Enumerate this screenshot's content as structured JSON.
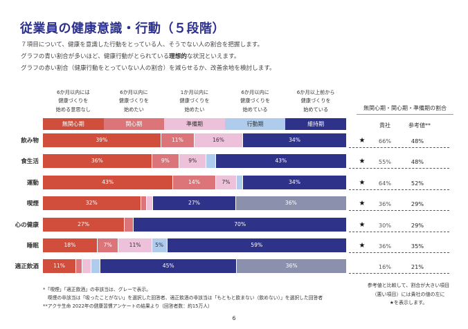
{
  "page": {
    "title": "従業員の健康意識・行動（５段階）",
    "intro": {
      "line1": "７項目について、健康を意識した行動をとっている人、そうでない人の割合を把握します。",
      "line2_pre": "グラフの青い割合が多いほど、健康行動がとられている",
      "line2_bold": "理想的",
      "line2_post": "な状況といえます。",
      "line3": "グラフの赤い割合（健康行動をとっていない人の割合）を減らせるか、改善余地を検討します。"
    },
    "page_number": "6"
  },
  "stage_descriptions": [
    [
      "6か月以内には",
      "健康づくりを",
      "始める意思なし"
    ],
    [
      "6か月以内に",
      "健康づくりを",
      "始めたい"
    ],
    [
      "1か月以内に",
      "健康づくりを",
      "始めたい"
    ],
    [
      "6か月以内に",
      "健康づくりを",
      "始めている"
    ],
    [
      "6か月以上前から",
      "健康づくりを",
      "始めている"
    ]
  ],
  "legend": [
    {
      "label": "無関心期",
      "color": "#d24e3c",
      "text_color": "#ffffff"
    },
    {
      "label": "関心期",
      "color": "#dc7579",
      "text_color": "#ffffff"
    },
    {
      "label": "準備期",
      "color": "#edc1d9",
      "text_color": "#333333"
    },
    {
      "label": "行動期",
      "color": "#b0ccec",
      "text_color": "#333333"
    },
    {
      "label": "維持期",
      "color": "#2e3289",
      "text_color": "#ffffff"
    }
  ],
  "chart_data": {
    "type": "bar",
    "orientation": "horizontal",
    "stacked": true,
    "unit": "%",
    "categories": [
      "飲み物",
      "食生活",
      "運動",
      "喫煙",
      "心の健康",
      "睡眠",
      "適正飲酒"
    ],
    "series": [
      {
        "name": "無関心期",
        "color": "#d24e3c",
        "label_color": "#ffffff",
        "values": [
          39,
          36,
          43,
          32,
          27,
          18,
          11
        ]
      },
      {
        "name": "関心期",
        "color": "#dc7579",
        "label_color": "#ffffff",
        "values": [
          11,
          9,
          14,
          2,
          3,
          7,
          2
        ]
      },
      {
        "name": "準備期",
        "color": "#edc1d9",
        "label_color": "#333333",
        "values": [
          16,
          9,
          7,
          2,
          0,
          11,
          3
        ]
      },
      {
        "name": "行動期",
        "color": "#b0ccec",
        "label_color": "#333333",
        "values": [
          0,
          3,
          2,
          0,
          0,
          5,
          3
        ]
      },
      {
        "name": "維持期",
        "color": "#2e3289",
        "label_color": "#ffffff",
        "values": [
          34,
          43,
          34,
          27,
          70,
          59,
          45
        ]
      },
      {
        "name": "非該当",
        "color": "#8b90ad",
        "label_color": "#ffffff",
        "values": [
          0,
          0,
          0,
          36,
          0,
          0,
          36
        ]
      }
    ],
    "xlim": [
      0,
      100
    ],
    "data_labels_shown_for_values_at_least": 5
  },
  "right_table": {
    "header": "無関心期・関心期・準備期の割合",
    "col_own": "貴社",
    "col_ref": "参考値**",
    "star_symbol": "★",
    "rows": [
      {
        "category": "飲み物",
        "star": true,
        "own": "66%",
        "ref": "48%"
      },
      {
        "category": "食生活",
        "star": true,
        "own": "55%",
        "ref": "48%"
      },
      {
        "category": "運動",
        "star": true,
        "own": "64%",
        "ref": "52%"
      },
      {
        "category": "喫煙",
        "star": true,
        "own": "36%",
        "ref": "29%"
      },
      {
        "category": "心の健康",
        "star": true,
        "own": "30%",
        "ref": "29%"
      },
      {
        "category": "睡眠",
        "star": true,
        "own": "36%",
        "ref": "35%"
      },
      {
        "category": "適正飲酒",
        "star": false,
        "own": "16%",
        "ref": "21%"
      }
    ],
    "note": [
      "参考値と比較して、割合が大きい項目",
      "（悪い項目）には貴社の値の左に",
      "★を表示します。"
    ]
  },
  "footnotes": [
    "*「喫煙」「適正飲酒」の非該当は、グレーで表示。",
    "　喫煙の非該当は「吸ったことがない」を選択した回答者、適正飲酒の非該当は「もともと飲まない（飲めない）」を選択した回答者",
    "**アクサ生命 2022年の健康習慣アンケートの結果より（回答者数：約15万人）"
  ]
}
